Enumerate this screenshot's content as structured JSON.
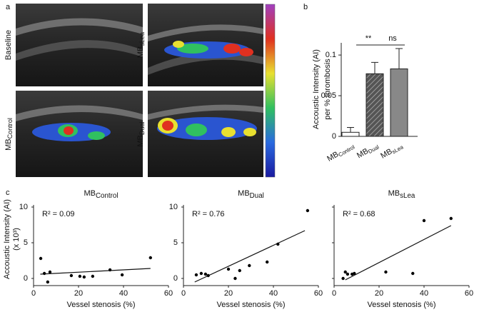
{
  "panel_letters": [
    "a",
    "b",
    "c"
  ],
  "images": [
    {
      "label": "Baseline"
    },
    {
      "label": {
        "main": "MB",
        "sub": "sLea"
      }
    },
    {
      "label": {
        "main": "MB",
        "sub": "Control"
      }
    },
    {
      "label": {
        "main": "MB",
        "sub": "Dual"
      }
    }
  ],
  "chart_data": [
    {
      "type": "bar",
      "categories": [
        {
          "main": "MB",
          "sub": "Control"
        },
        {
          "main": "MB",
          "sub": "Dual"
        },
        {
          "main": "MB",
          "sub": "sLea"
        }
      ],
      "values": [
        0.005,
        0.077,
        0.083
      ],
      "errors": [
        0.006,
        0.014,
        0.025
      ],
      "colors": [
        "#ffffff",
        "#555555",
        "#888888"
      ],
      "hatched": [
        false,
        true,
        false
      ],
      "ylabel": [
        "Accoustic Intensity (AI)",
        "per % thrombosis"
      ],
      "ylim": [
        0,
        0.115
      ],
      "yticks": [
        0,
        0.05,
        0.1
      ],
      "annotations": [
        "**",
        "ns"
      ]
    },
    {
      "type": "scatter",
      "title": {
        "main": "MB",
        "sub": "Control"
      },
      "annotation": "R² = 0.09",
      "xlabel": "Vessel stenosis (%)",
      "ylabel": [
        "Accoustic Intensity (AI)",
        "(x 10³)"
      ],
      "x": [
        3.2,
        4.8,
        6.3,
        7.3,
        16.8,
        20.6,
        22.5,
        26.3,
        34,
        39.4,
        52
      ],
      "y": [
        2.8,
        0.7,
        -0.5,
        0.9,
        0.4,
        0.3,
        0.2,
        0.3,
        1.2,
        0.5,
        2.9
      ],
      "fit": {
        "x": [
          3,
          52
        ],
        "y": [
          0.6,
          1.4
        ]
      },
      "marker_color": "#000000",
      "xlim": [
        0,
        60
      ],
      "ylim": [
        -1,
        10.3
      ],
      "xticks": [
        0,
        20,
        40,
        60
      ],
      "yticks": [
        0,
        5,
        10
      ],
      "ytick_labels": true
    },
    {
      "type": "scatter",
      "title": {
        "main": "MB",
        "sub": "Dual"
      },
      "annotation": "R² = 0.76",
      "xlabel": "Vessel stenosis (%)",
      "x": [
        5.7,
        7.9,
        9.8,
        11,
        20,
        23,
        25,
        29.3,
        37.2,
        42,
        55.2
      ],
      "y": [
        0.5,
        0.7,
        0.6,
        0.4,
        1.3,
        0,
        1.1,
        1.8,
        2.3,
        4.8,
        9.5
      ],
      "fit": {
        "x": [
          5,
          54
        ],
        "y": [
          -0.5,
          6.7
        ]
      },
      "marker_color": "#000000",
      "xlim": [
        0,
        60
      ],
      "ylim": [
        -1,
        10.3
      ],
      "xticks": [
        0,
        20,
        40,
        60
      ],
      "yticks": [
        0,
        5,
        10
      ],
      "ytick_labels": true
    },
    {
      "type": "scatter",
      "title": {
        "main": "MB",
        "sub": "sLea"
      },
      "annotation": "R² = 0.68",
      "xlabel": "Vessel stenosis (%)",
      "x": [
        4,
        5,
        6,
        8,
        9,
        23,
        35,
        40,
        52
      ],
      "y": [
        0,
        0.9,
        0.6,
        0.6,
        0.7,
        0.9,
        0.7,
        8.1,
        8.4
      ],
      "fit": {
        "x": [
          5,
          52
        ],
        "y": [
          -0.2,
          7.4
        ]
      },
      "marker_color": "#000000",
      "xlim": [
        0,
        60
      ],
      "ylim": [
        -1,
        10.3
      ],
      "xticks": [
        0,
        20,
        40,
        60
      ],
      "yticks": [
        0,
        5,
        10
      ],
      "ytick_labels": false
    }
  ]
}
